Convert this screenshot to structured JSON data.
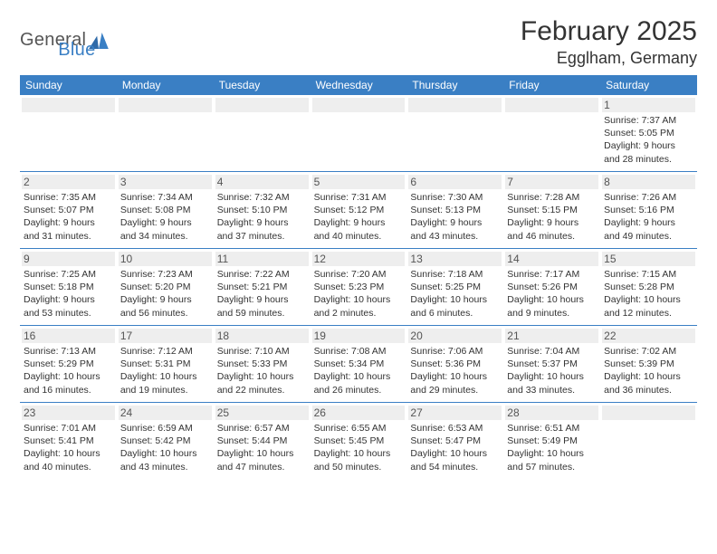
{
  "logo": {
    "text1": "General",
    "text2": "Blue"
  },
  "title": "February 2025",
  "location": "Egglham, Germany",
  "colors": {
    "header_bar": "#3a7fc4",
    "header_text": "#ffffff",
    "daynum_bg": "#eeeeee",
    "rule": "#3a7fc4",
    "body_text": "#333333",
    "muted_text": "#555555",
    "logo_blue": "#3a7fc4",
    "background": "#ffffff"
  },
  "fonts": {
    "title_size_pt": 22,
    "location_size_pt": 13,
    "dow_size_pt": 9,
    "cell_size_pt": 8
  },
  "days_of_week": [
    "Sunday",
    "Monday",
    "Tuesday",
    "Wednesday",
    "Thursday",
    "Friday",
    "Saturday"
  ],
  "weeks": [
    [
      {
        "n": "",
        "sunrise": "",
        "sunset": "",
        "daylight": ""
      },
      {
        "n": "",
        "sunrise": "",
        "sunset": "",
        "daylight": ""
      },
      {
        "n": "",
        "sunrise": "",
        "sunset": "",
        "daylight": ""
      },
      {
        "n": "",
        "sunrise": "",
        "sunset": "",
        "daylight": ""
      },
      {
        "n": "",
        "sunrise": "",
        "sunset": "",
        "daylight": ""
      },
      {
        "n": "",
        "sunrise": "",
        "sunset": "",
        "daylight": ""
      },
      {
        "n": "1",
        "sunrise": "Sunrise: 7:37 AM",
        "sunset": "Sunset: 5:05 PM",
        "daylight": "Daylight: 9 hours and 28 minutes."
      }
    ],
    [
      {
        "n": "2",
        "sunrise": "Sunrise: 7:35 AM",
        "sunset": "Sunset: 5:07 PM",
        "daylight": "Daylight: 9 hours and 31 minutes."
      },
      {
        "n": "3",
        "sunrise": "Sunrise: 7:34 AM",
        "sunset": "Sunset: 5:08 PM",
        "daylight": "Daylight: 9 hours and 34 minutes."
      },
      {
        "n": "4",
        "sunrise": "Sunrise: 7:32 AM",
        "sunset": "Sunset: 5:10 PM",
        "daylight": "Daylight: 9 hours and 37 minutes."
      },
      {
        "n": "5",
        "sunrise": "Sunrise: 7:31 AM",
        "sunset": "Sunset: 5:12 PM",
        "daylight": "Daylight: 9 hours and 40 minutes."
      },
      {
        "n": "6",
        "sunrise": "Sunrise: 7:30 AM",
        "sunset": "Sunset: 5:13 PM",
        "daylight": "Daylight: 9 hours and 43 minutes."
      },
      {
        "n": "7",
        "sunrise": "Sunrise: 7:28 AM",
        "sunset": "Sunset: 5:15 PM",
        "daylight": "Daylight: 9 hours and 46 minutes."
      },
      {
        "n": "8",
        "sunrise": "Sunrise: 7:26 AM",
        "sunset": "Sunset: 5:16 PM",
        "daylight": "Daylight: 9 hours and 49 minutes."
      }
    ],
    [
      {
        "n": "9",
        "sunrise": "Sunrise: 7:25 AM",
        "sunset": "Sunset: 5:18 PM",
        "daylight": "Daylight: 9 hours and 53 minutes."
      },
      {
        "n": "10",
        "sunrise": "Sunrise: 7:23 AM",
        "sunset": "Sunset: 5:20 PM",
        "daylight": "Daylight: 9 hours and 56 minutes."
      },
      {
        "n": "11",
        "sunrise": "Sunrise: 7:22 AM",
        "sunset": "Sunset: 5:21 PM",
        "daylight": "Daylight: 9 hours and 59 minutes."
      },
      {
        "n": "12",
        "sunrise": "Sunrise: 7:20 AM",
        "sunset": "Sunset: 5:23 PM",
        "daylight": "Daylight: 10 hours and 2 minutes."
      },
      {
        "n": "13",
        "sunrise": "Sunrise: 7:18 AM",
        "sunset": "Sunset: 5:25 PM",
        "daylight": "Daylight: 10 hours and 6 minutes."
      },
      {
        "n": "14",
        "sunrise": "Sunrise: 7:17 AM",
        "sunset": "Sunset: 5:26 PM",
        "daylight": "Daylight: 10 hours and 9 minutes."
      },
      {
        "n": "15",
        "sunrise": "Sunrise: 7:15 AM",
        "sunset": "Sunset: 5:28 PM",
        "daylight": "Daylight: 10 hours and 12 minutes."
      }
    ],
    [
      {
        "n": "16",
        "sunrise": "Sunrise: 7:13 AM",
        "sunset": "Sunset: 5:29 PM",
        "daylight": "Daylight: 10 hours and 16 minutes."
      },
      {
        "n": "17",
        "sunrise": "Sunrise: 7:12 AM",
        "sunset": "Sunset: 5:31 PM",
        "daylight": "Daylight: 10 hours and 19 minutes."
      },
      {
        "n": "18",
        "sunrise": "Sunrise: 7:10 AM",
        "sunset": "Sunset: 5:33 PM",
        "daylight": "Daylight: 10 hours and 22 minutes."
      },
      {
        "n": "19",
        "sunrise": "Sunrise: 7:08 AM",
        "sunset": "Sunset: 5:34 PM",
        "daylight": "Daylight: 10 hours and 26 minutes."
      },
      {
        "n": "20",
        "sunrise": "Sunrise: 7:06 AM",
        "sunset": "Sunset: 5:36 PM",
        "daylight": "Daylight: 10 hours and 29 minutes."
      },
      {
        "n": "21",
        "sunrise": "Sunrise: 7:04 AM",
        "sunset": "Sunset: 5:37 PM",
        "daylight": "Daylight: 10 hours and 33 minutes."
      },
      {
        "n": "22",
        "sunrise": "Sunrise: 7:02 AM",
        "sunset": "Sunset: 5:39 PM",
        "daylight": "Daylight: 10 hours and 36 minutes."
      }
    ],
    [
      {
        "n": "23",
        "sunrise": "Sunrise: 7:01 AM",
        "sunset": "Sunset: 5:41 PM",
        "daylight": "Daylight: 10 hours and 40 minutes."
      },
      {
        "n": "24",
        "sunrise": "Sunrise: 6:59 AM",
        "sunset": "Sunset: 5:42 PM",
        "daylight": "Daylight: 10 hours and 43 minutes."
      },
      {
        "n": "25",
        "sunrise": "Sunrise: 6:57 AM",
        "sunset": "Sunset: 5:44 PM",
        "daylight": "Daylight: 10 hours and 47 minutes."
      },
      {
        "n": "26",
        "sunrise": "Sunrise: 6:55 AM",
        "sunset": "Sunset: 5:45 PM",
        "daylight": "Daylight: 10 hours and 50 minutes."
      },
      {
        "n": "27",
        "sunrise": "Sunrise: 6:53 AM",
        "sunset": "Sunset: 5:47 PM",
        "daylight": "Daylight: 10 hours and 54 minutes."
      },
      {
        "n": "28",
        "sunrise": "Sunrise: 6:51 AM",
        "sunset": "Sunset: 5:49 PM",
        "daylight": "Daylight: 10 hours and 57 minutes."
      },
      {
        "n": "",
        "sunrise": "",
        "sunset": "",
        "daylight": ""
      }
    ]
  ]
}
